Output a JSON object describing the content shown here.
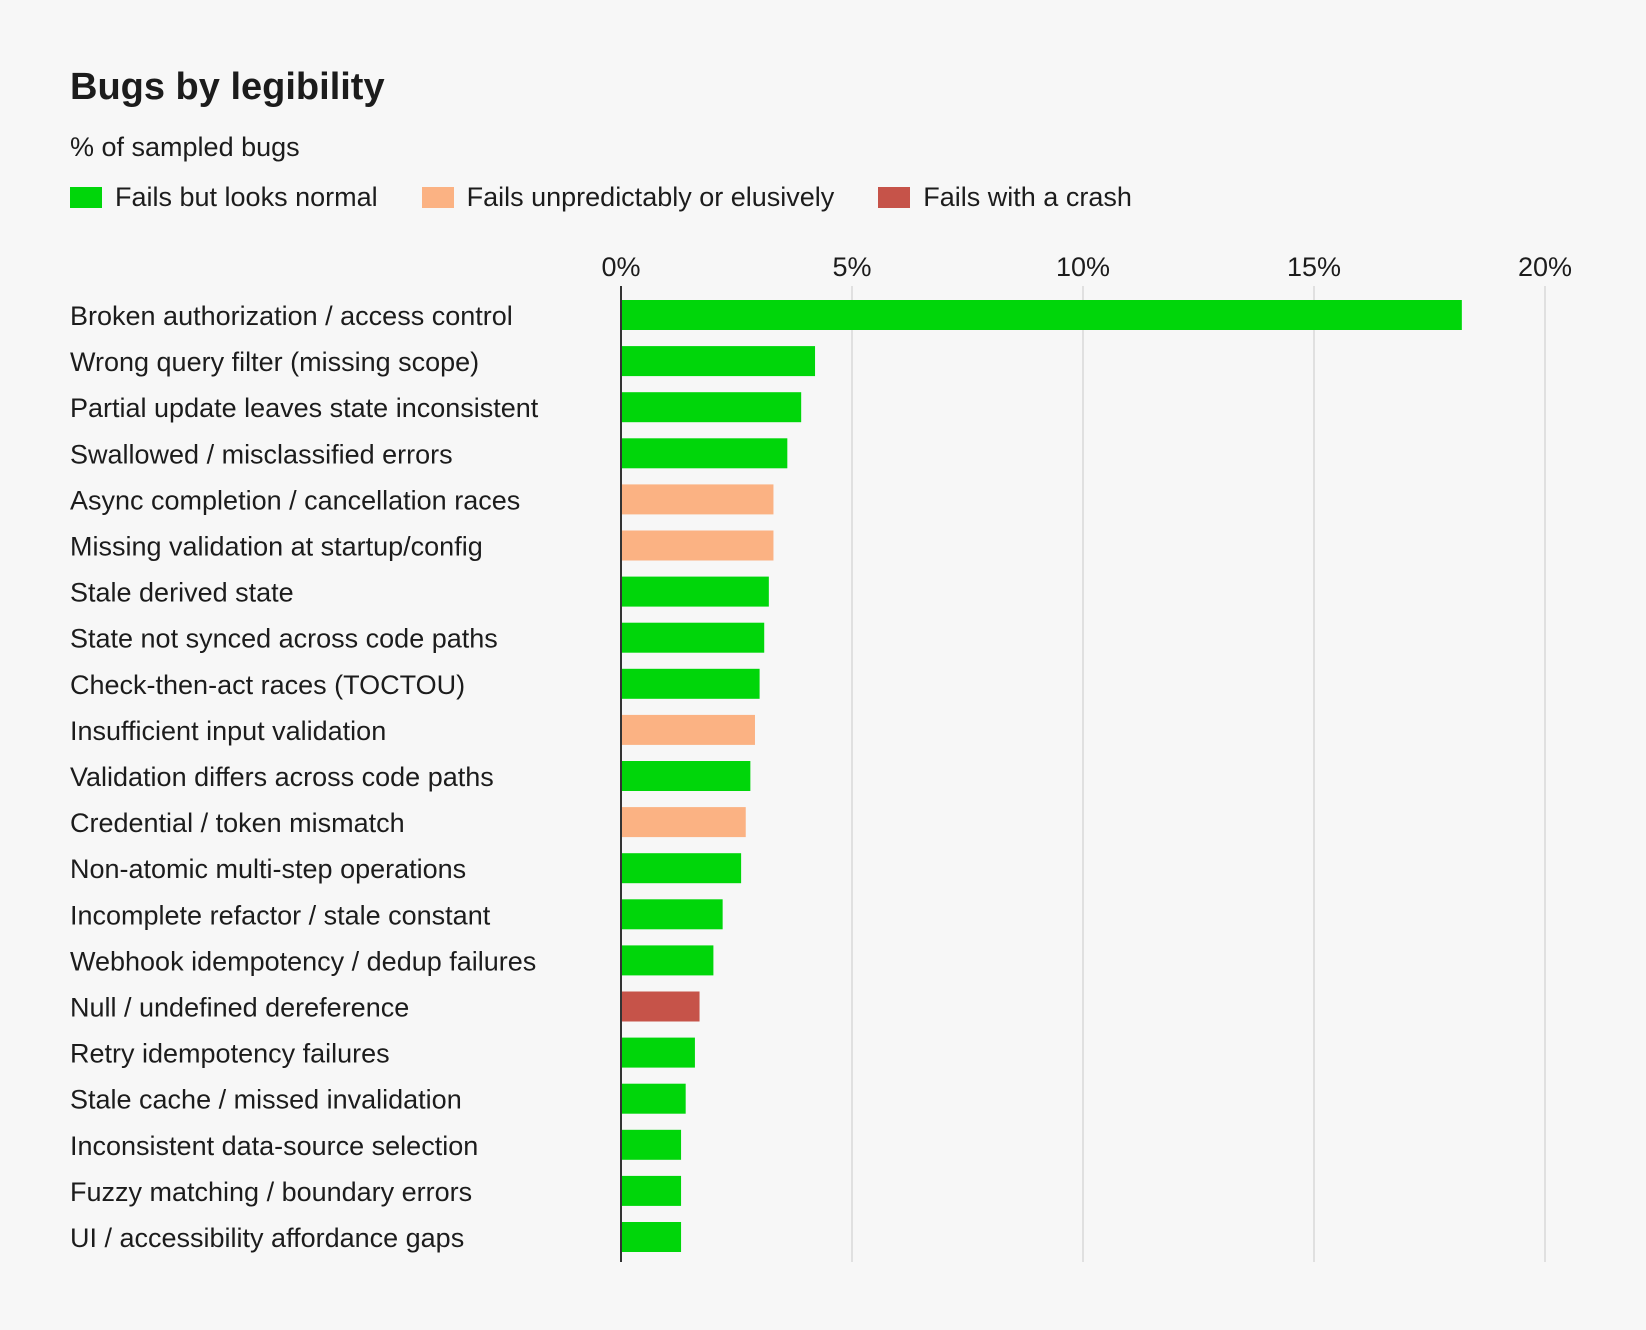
{
  "chart_data": {
    "type": "bar",
    "orientation": "horizontal",
    "title": "Bugs by legibility",
    "subtitle": "% of sampled bugs",
    "xlim": [
      0,
      20
    ],
    "xticks": [
      0,
      5,
      10,
      15,
      20
    ],
    "xtick_labels": [
      "0%",
      "5%",
      "10%",
      "15%",
      "20%"
    ],
    "grid": true,
    "legend_position": "top-left",
    "legend": [
      {
        "key": "normal",
        "label": "Fails but looks normal",
        "color": "#00d60a"
      },
      {
        "key": "elusive",
        "label": "Fails unpredictably or elusively",
        "color": "#fbb283"
      },
      {
        "key": "crash",
        "label": "Fails with a crash",
        "color": "#c65349"
      }
    ],
    "categories": [
      "Broken authorization / access control",
      "Wrong query filter (missing scope)",
      "Partial update leaves state inconsistent",
      "Swallowed / misclassified errors",
      "Async completion / cancellation races",
      "Missing validation at startup/config",
      "Stale derived state",
      "State not synced across code paths",
      "Check-then-act races (TOCTOU)",
      "Insufficient input validation",
      "Validation differs across code paths",
      "Credential / token mismatch",
      "Non-atomic multi-step operations",
      "Incomplete refactor / stale constant",
      "Webhook idempotency / dedup failures",
      "Null / undefined dereference",
      "Retry idempotency failures",
      "Stale cache / missed invalidation",
      "Inconsistent data-source selection",
      "Fuzzy matching / boundary errors",
      "UI / accessibility affordance gaps"
    ],
    "values": [
      18.2,
      4.2,
      3.9,
      3.6,
      3.3,
      3.3,
      3.2,
      3.1,
      3.0,
      2.9,
      2.8,
      2.7,
      2.6,
      2.2,
      2.0,
      1.7,
      1.6,
      1.4,
      1.3,
      1.3,
      1.3
    ],
    "groups": [
      "normal",
      "normal",
      "normal",
      "normal",
      "elusive",
      "elusive",
      "normal",
      "normal",
      "normal",
      "elusive",
      "normal",
      "elusive",
      "normal",
      "normal",
      "normal",
      "crash",
      "normal",
      "normal",
      "normal",
      "normal",
      "normal"
    ]
  }
}
